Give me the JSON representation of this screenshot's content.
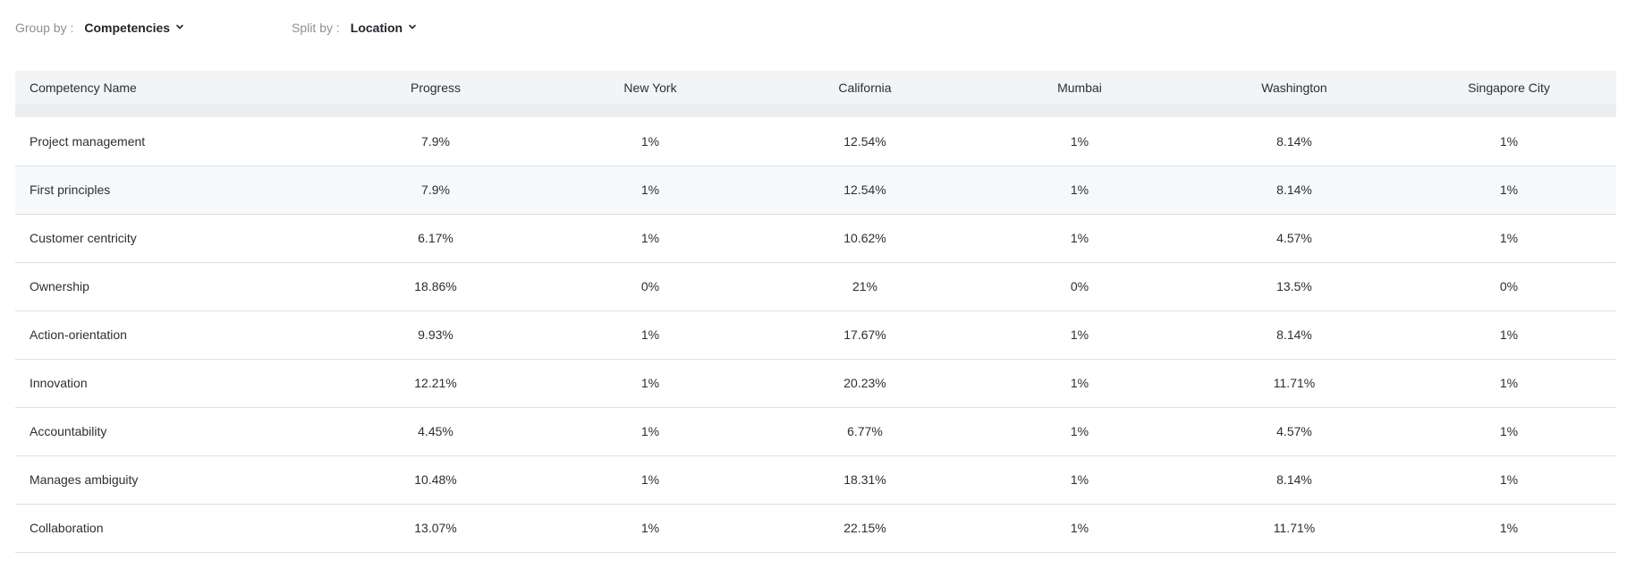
{
  "toolbar": {
    "group_by": {
      "label": "Group by :",
      "value": "Competencies",
      "icon": "chevron-down-icon"
    },
    "split_by": {
      "label": "Split by :",
      "value": "Location",
      "icon": "chevron-down-icon"
    }
  },
  "table": {
    "columns": [
      "Competency Name",
      "Progress",
      "New York",
      "California",
      "Mumbai",
      "Washington",
      "Singapore City"
    ],
    "highlighted_row": 1,
    "rows": [
      [
        "Project management",
        "7.9%",
        "1%",
        "12.54%",
        "1%",
        "8.14%",
        "1%"
      ],
      [
        "First principles",
        "7.9%",
        "1%",
        "12.54%",
        "1%",
        "8.14%",
        "1%"
      ],
      [
        "Customer centricity",
        "6.17%",
        "1%",
        "10.62%",
        "1%",
        "4.57%",
        "1%"
      ],
      [
        "Ownership",
        "18.86%",
        "0%",
        "21%",
        "0%",
        "13.5%",
        "0%"
      ],
      [
        "Action-orientation",
        "9.93%",
        "1%",
        "17.67%",
        "1%",
        "8.14%",
        "1%"
      ],
      [
        "Innovation",
        "12.21%",
        "1%",
        "20.23%",
        "1%",
        "11.71%",
        "1%"
      ],
      [
        "Accountability",
        "4.45%",
        "1%",
        "6.77%",
        "1%",
        "4.57%",
        "1%"
      ],
      [
        "Manages ambiguity",
        "10.48%",
        "1%",
        "18.31%",
        "1%",
        "8.14%",
        "1%"
      ],
      [
        "Collaboration",
        "13.07%",
        "1%",
        "22.15%",
        "1%",
        "11.71%",
        "1%"
      ]
    ]
  },
  "colors": {
    "header_bg": "#f3f4f6",
    "spacer_bg": "#ebeef1",
    "row_highlight": "#f6f9fc",
    "row_border": "#dcdfe3",
    "label_muted": "#8c9198"
  }
}
